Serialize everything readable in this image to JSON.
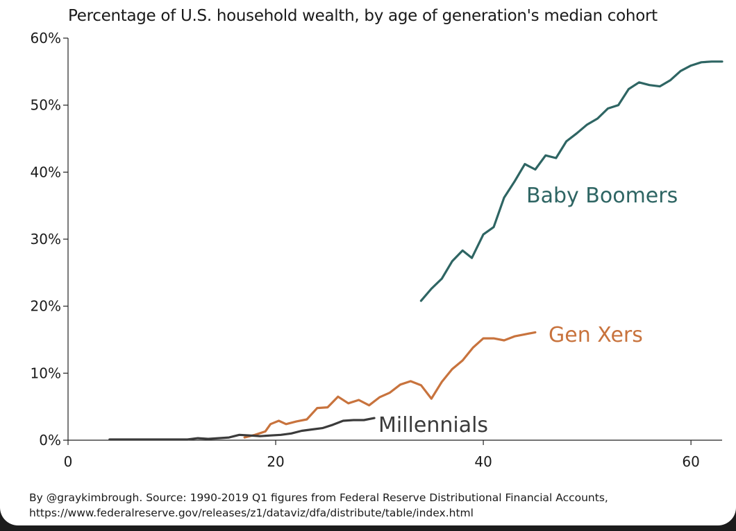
{
  "chart_data": {
    "type": "line",
    "title": "Percentage of U.S. household wealth, by age of generation's median cohort",
    "xlabel": "",
    "ylabel": "",
    "xlim": [
      0,
      63
    ],
    "ylim": [
      0,
      60
    ],
    "x_ticks": [
      0,
      20,
      40,
      60
    ],
    "y_ticks": [
      0,
      10,
      20,
      30,
      40,
      50,
      60
    ],
    "y_tick_labels": [
      "0%",
      "10%",
      "20%",
      "30%",
      "40%",
      "50%",
      "60%"
    ],
    "grid": false,
    "legend": "inline labels at series ends",
    "series": [
      {
        "name": "Baby Boomers",
        "color": "#2e6563",
        "points": [
          [
            34.0,
            20.8
          ],
          [
            35.0,
            22.6
          ],
          [
            36.0,
            24.1
          ],
          [
            37.0,
            26.7
          ],
          [
            38.0,
            28.3
          ],
          [
            38.9,
            27.2
          ],
          [
            40.0,
            30.7
          ],
          [
            41.0,
            31.8
          ],
          [
            42.0,
            36.2
          ],
          [
            43.0,
            38.6
          ],
          [
            44.0,
            41.2
          ],
          [
            45.0,
            40.4
          ],
          [
            46.0,
            42.5
          ],
          [
            47.0,
            42.1
          ],
          [
            48.0,
            44.6
          ],
          [
            49.0,
            45.8
          ],
          [
            50.0,
            47.1
          ],
          [
            51.0,
            48.0
          ],
          [
            52.0,
            49.5
          ],
          [
            53.0,
            50.0
          ],
          [
            54.0,
            52.4
          ],
          [
            55.0,
            53.4
          ],
          [
            56.0,
            53.0
          ],
          [
            57.0,
            52.8
          ],
          [
            58.0,
            53.7
          ],
          [
            59.0,
            55.1
          ],
          [
            60.0,
            55.9
          ],
          [
            61.0,
            56.4
          ],
          [
            62.0,
            56.5
          ],
          [
            63.0,
            56.5
          ]
        ]
      },
      {
        "name": "Gen Xers",
        "color": "#c8733d",
        "points": [
          [
            17.0,
            0.4
          ],
          [
            18.0,
            0.8
          ],
          [
            19.0,
            1.3
          ],
          [
            19.5,
            2.4
          ],
          [
            20.3,
            2.9
          ],
          [
            21.0,
            2.4
          ],
          [
            22.0,
            2.8
          ],
          [
            23.0,
            3.1
          ],
          [
            24.0,
            4.8
          ],
          [
            25.0,
            4.9
          ],
          [
            26.0,
            6.5
          ],
          [
            27.0,
            5.5
          ],
          [
            28.0,
            6.0
          ],
          [
            29.0,
            5.2
          ],
          [
            30.0,
            6.4
          ],
          [
            31.0,
            7.1
          ],
          [
            32.0,
            8.3
          ],
          [
            33.0,
            8.8
          ],
          [
            34.0,
            8.2
          ],
          [
            35.0,
            6.2
          ],
          [
            36.0,
            8.7
          ],
          [
            37.0,
            10.6
          ],
          [
            38.0,
            11.9
          ],
          [
            39.0,
            13.8
          ],
          [
            40.0,
            15.2
          ],
          [
            41.0,
            15.2
          ],
          [
            42.0,
            14.9
          ],
          [
            43.0,
            15.5
          ],
          [
            44.0,
            15.8
          ],
          [
            45.0,
            16.1
          ]
        ]
      },
      {
        "name": "Millennials",
        "color": "#3b3b3b",
        "points": [
          [
            4.0,
            0.1
          ],
          [
            6.0,
            0.1
          ],
          [
            8.0,
            0.1
          ],
          [
            10.0,
            0.1
          ],
          [
            11.5,
            0.1
          ],
          [
            12.5,
            0.3
          ],
          [
            13.5,
            0.2
          ],
          [
            14.5,
            0.3
          ],
          [
            15.5,
            0.4
          ],
          [
            16.5,
            0.8
          ],
          [
            17.5,
            0.7
          ],
          [
            18.5,
            0.6
          ],
          [
            19.5,
            0.7
          ],
          [
            20.5,
            0.8
          ],
          [
            21.5,
            1.0
          ],
          [
            22.5,
            1.4
          ],
          [
            23.5,
            1.6
          ],
          [
            24.5,
            1.8
          ],
          [
            25.5,
            2.3
          ],
          [
            26.5,
            2.9
          ],
          [
            27.5,
            3.0
          ],
          [
            28.5,
            3.0
          ],
          [
            29.5,
            3.3
          ]
        ]
      }
    ]
  },
  "footer": {
    "line1": "By @graykimbrough. Source: 1990-2019 Q1 figures from Federal Reserve Distributional Financial Accounts,",
    "line2": "https://www.federalreserve.gov/releases/z1/dataviz/dfa/distribute/table/index.html"
  }
}
